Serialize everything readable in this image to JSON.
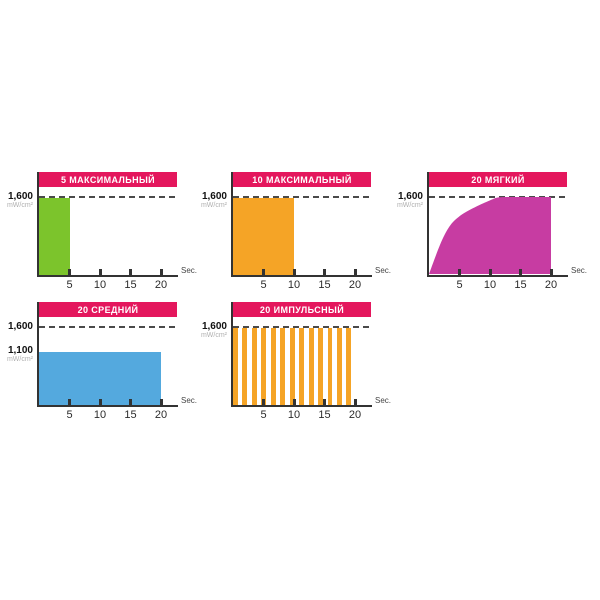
{
  "page": {
    "background_color": "#ffffff"
  },
  "styles": {
    "banner_color": "#E4175D",
    "banner_text_color": "#ffffff",
    "axis_color": "#333333",
    "dash_color": "#4a4a4a",
    "value_label_color": "#111111",
    "unit_label_color": "#b0b0b0",
    "tick_label_color": "#2b2b2b"
  },
  "chart_data": [
    {
      "type": "area",
      "mode": "constant",
      "title": "5 МАКСИМАЛЬНЫЙ",
      "duration_sec": 5,
      "intensity_mw_cm2": 1600,
      "x_ticks": [
        5,
        10,
        15,
        20
      ],
      "x_unit_label": "Sec.",
      "y_axis_labels": [
        {
          "value_label": "1,600",
          "at_mw_cm2": 1600
        }
      ],
      "y_unit_label": "mW/cm²",
      "reference_line_mw_cm2": 1600,
      "fill_color": "#7CC42C",
      "xlim_sec": [
        0,
        22
      ],
      "ylim_mw_cm2": [
        0,
        1800
      ]
    },
    {
      "type": "area",
      "mode": "constant",
      "title": "10 МАКСИМАЛЬНЫЙ",
      "duration_sec": 10,
      "intensity_mw_cm2": 1600,
      "x_ticks": [
        5,
        10,
        15,
        20
      ],
      "x_unit_label": "Sec.",
      "y_axis_labels": [
        {
          "value_label": "1,600",
          "at_mw_cm2": 1600
        }
      ],
      "y_unit_label": "mW/cm²",
      "reference_line_mw_cm2": 1600,
      "fill_color": "#F5A426",
      "xlim_sec": [
        0,
        22
      ],
      "ylim_mw_cm2": [
        0,
        1800
      ]
    },
    {
      "type": "area",
      "mode": "ramp",
      "title": "20 МЯГКИЙ",
      "duration_sec": 20,
      "intensity_mw_cm2": 1600,
      "curve_points_sec_mw": [
        [
          0,
          0
        ],
        [
          2.5,
          800
        ],
        [
          5,
          1200
        ],
        [
          10,
          1530
        ],
        [
          12.5,
          1600
        ],
        [
          20,
          1600
        ]
      ],
      "x_ticks": [
        5,
        10,
        15,
        20
      ],
      "x_unit_label": "Sec.",
      "y_axis_labels": [
        {
          "value_label": "1,600",
          "at_mw_cm2": 1600
        }
      ],
      "y_unit_label": "mW/cm²",
      "reference_line_mw_cm2": 1600,
      "fill_color": "#C73CA2",
      "xlim_sec": [
        0,
        22
      ],
      "ylim_mw_cm2": [
        0,
        1800
      ]
    },
    {
      "type": "area",
      "mode": "constant",
      "title": "20 СРЕДНИЙ",
      "duration_sec": 20,
      "intensity_mw_cm2": 1100,
      "x_ticks": [
        5,
        10,
        15,
        20
      ],
      "x_unit_label": "Sec.",
      "y_axis_labels": [
        {
          "value_label": "1,600",
          "at_mw_cm2": 1600
        },
        {
          "value_label": "1,100",
          "at_mw_cm2": 1100
        }
      ],
      "y_unit_label": "mW/cm²",
      "reference_line_mw_cm2": 1600,
      "fill_color": "#54A9DE",
      "xlim_sec": [
        0,
        22
      ],
      "ylim_mw_cm2": [
        0,
        1800
      ]
    },
    {
      "type": "bar",
      "mode": "pulsed",
      "title": "20 ИМПУЛЬСНЫЙ",
      "duration_sec": 20,
      "intensity_mw_cm2": 1600,
      "pulse_count": 13,
      "pulse_on_sec": 0.8,
      "pulse_period_sec": 1.55,
      "x_ticks": [
        5,
        10,
        15,
        20
      ],
      "x_unit_label": "Sec.",
      "y_axis_labels": [
        {
          "value_label": "1,600",
          "at_mw_cm2": 1600
        }
      ],
      "y_unit_label": "mW/cm²",
      "reference_line_mw_cm2": 1600,
      "fill_color": "#F5A426",
      "xlim_sec": [
        0,
        22
      ],
      "ylim_mw_cm2": [
        0,
        1800
      ]
    }
  ]
}
